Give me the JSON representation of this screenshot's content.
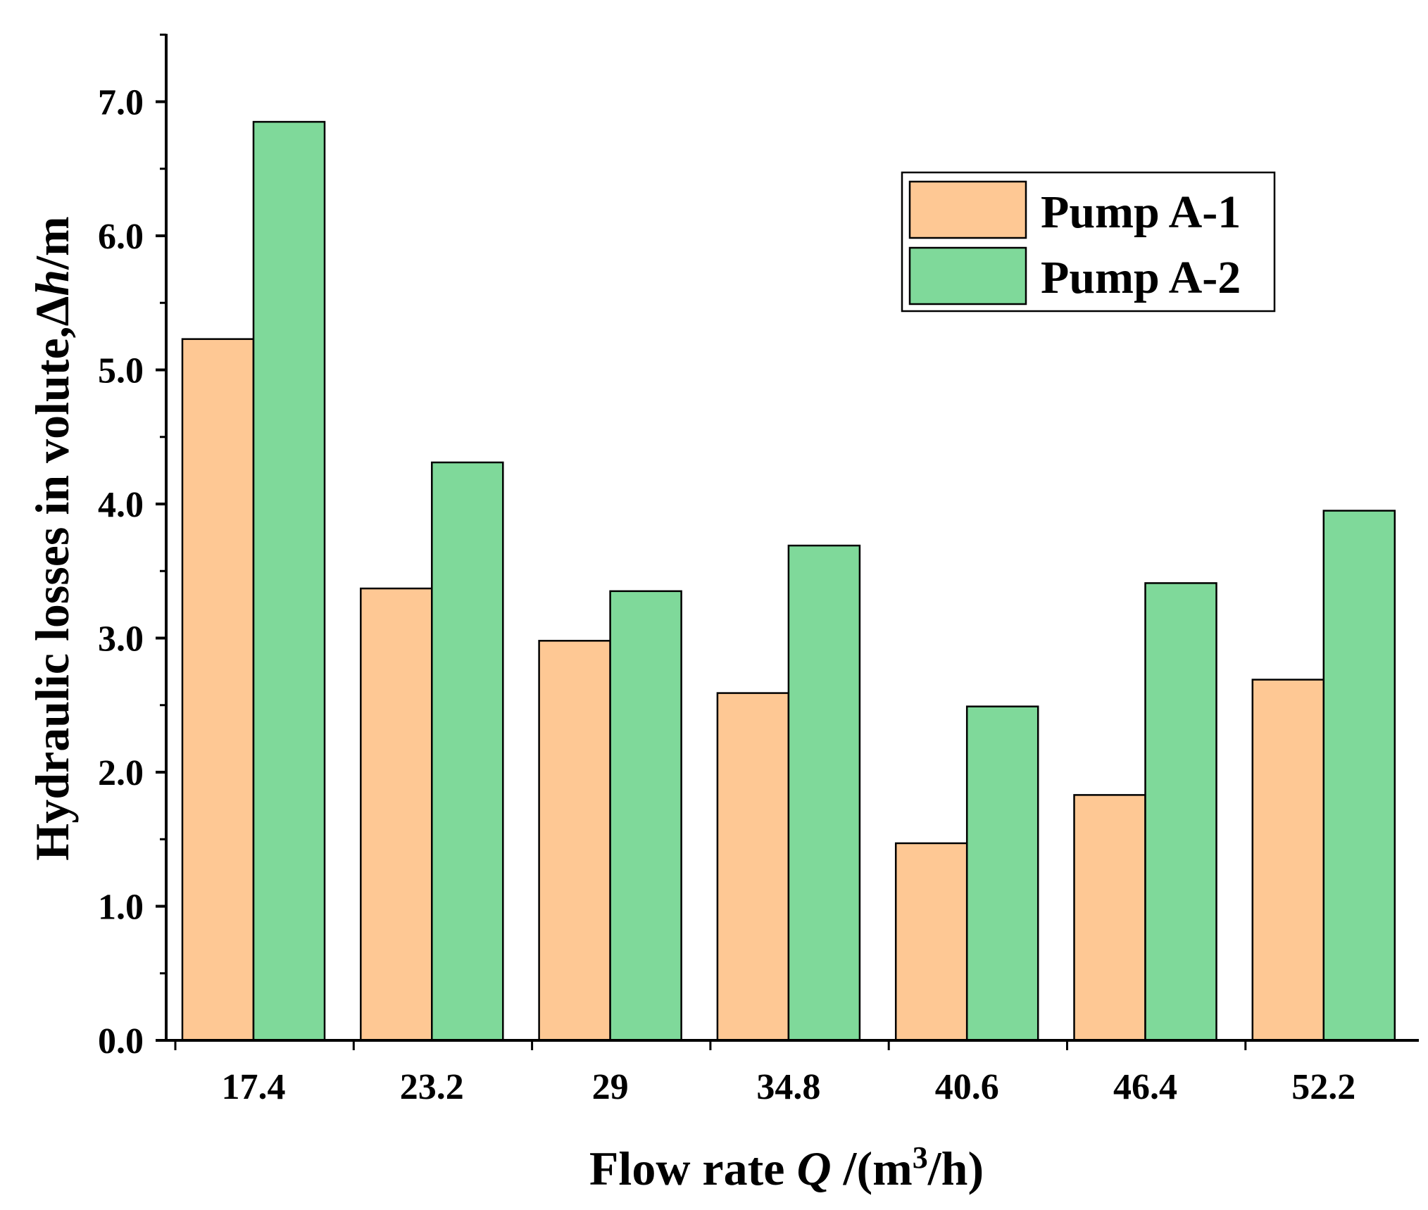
{
  "chart_data": {
    "type": "bar",
    "title": "",
    "xlabel": {
      "prefix": "Flow rate ",
      "var": "Q",
      "mid": " /(m",
      "sup": "3",
      "suffix": "/h)"
    },
    "ylabel": {
      "prefix": "Hydraulic losses in volute,Δ",
      "var": "h",
      "suffix": "/m"
    },
    "categories": [
      "17.4",
      "23.2",
      "29",
      "34.8",
      "40.6",
      "46.4",
      "52.2"
    ],
    "series": [
      {
        "name": "Pump A-1",
        "color": "#fec894",
        "values": [
          5.23,
          3.37,
          2.98,
          2.59,
          1.47,
          1.83,
          2.69
        ]
      },
      {
        "name": "Pump A-2",
        "color": "#7fd99a",
        "values": [
          6.85,
          4.31,
          3.35,
          3.69,
          2.49,
          3.41,
          3.95
        ]
      }
    ],
    "yticks": [
      "0.0",
      "1.0",
      "2.0",
      "3.0",
      "4.0",
      "5.0",
      "6.0",
      "7.0"
    ],
    "ylim": [
      0,
      7.5
    ],
    "legend_position": "top-right",
    "grid": false
  }
}
